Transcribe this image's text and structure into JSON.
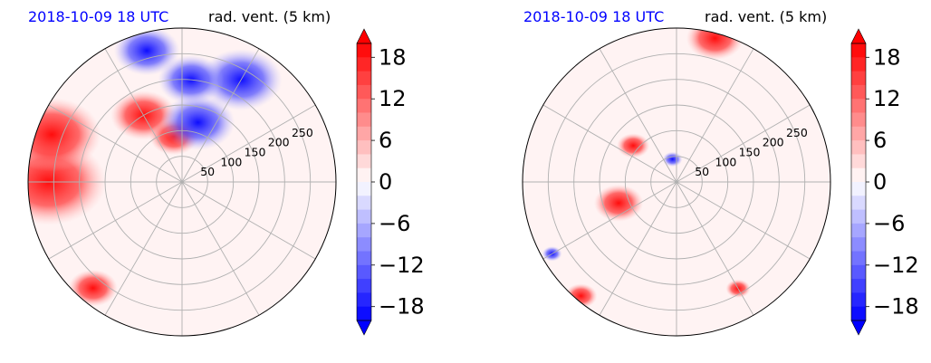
{
  "chart_data": [
    {
      "type": "heatmap",
      "projection": "polar",
      "panel": "left",
      "date_label": "2018-10-09 18 UTC",
      "title": "rad. vent. (5 km)",
      "radial_ticks": [
        "50",
        "100",
        "150",
        "200",
        "250"
      ],
      "radial_range": [
        0,
        300
      ],
      "angular_gridlines_deg": [
        0,
        30,
        60,
        90,
        120,
        150,
        180,
        210,
        240,
        270,
        300,
        330
      ],
      "grid": true,
      "colorbar": {
        "ticks": [
          "18",
          "12",
          "6",
          "0",
          "−6",
          "−12",
          "−18"
        ],
        "range": [
          -20,
          20
        ],
        "extend": "both",
        "cmap": "bwr"
      },
      "features": [
        {
          "kind": "positive",
          "angle_deg": 180,
          "radius": 260,
          "size": 70
        },
        {
          "kind": "positive",
          "angle_deg": 160,
          "radius": 270,
          "size": 60
        },
        {
          "kind": "positive",
          "angle_deg": 120,
          "radius": 150,
          "size": 40
        },
        {
          "kind": "positive",
          "angle_deg": 100,
          "radius": 90,
          "size": 30
        },
        {
          "kind": "negative",
          "angle_deg": 75,
          "radius": 120,
          "size": 45
        },
        {
          "kind": "negative",
          "angle_deg": 60,
          "radius": 230,
          "size": 50
        },
        {
          "kind": "negative",
          "angle_deg": 105,
          "radius": 265,
          "size": 40
        },
        {
          "kind": "negative",
          "angle_deg": 85,
          "radius": 200,
          "size": 40
        },
        {
          "kind": "positive",
          "angle_deg": 230,
          "radius": 270,
          "size": 30
        }
      ]
    },
    {
      "type": "heatmap",
      "projection": "polar",
      "panel": "right",
      "date_label": "2018-10-09 18 UTC",
      "title": "rad. vent. (5 km)",
      "radial_ticks": [
        "50",
        "100",
        "150",
        "200",
        "250"
      ],
      "radial_range": [
        0,
        300
      ],
      "angular_gridlines_deg": [
        0,
        30,
        60,
        90,
        120,
        150,
        180,
        210,
        240,
        270,
        300,
        330
      ],
      "grid": true,
      "colorbar": {
        "ticks": [
          "18",
          "12",
          "6",
          "0",
          "−6",
          "−12",
          "−18"
        ],
        "range": [
          -20,
          20
        ],
        "extend": "both",
        "cmap": "bwr"
      },
      "features": [
        {
          "kind": "positive",
          "angle_deg": 75,
          "radius": 290,
          "size": 35
        },
        {
          "kind": "positive",
          "angle_deg": 140,
          "radius": 110,
          "size": 20
        },
        {
          "kind": "positive",
          "angle_deg": 200,
          "radius": 120,
          "size": 30
        },
        {
          "kind": "negative",
          "angle_deg": 100,
          "radius": 45,
          "size": 12
        },
        {
          "kind": "negative",
          "angle_deg": 210,
          "radius": 280,
          "size": 12
        },
        {
          "kind": "positive",
          "angle_deg": 300,
          "radius": 240,
          "size": 15
        },
        {
          "kind": "positive",
          "angle_deg": 230,
          "radius": 290,
          "size": 20
        }
      ]
    }
  ]
}
